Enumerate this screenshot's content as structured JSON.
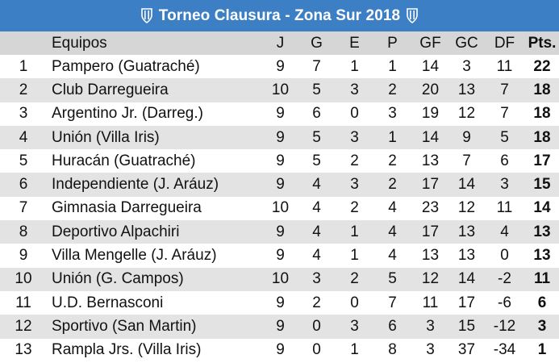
{
  "title": "Torneo Clausura - Zona Sur 2018",
  "colors": {
    "header_bar": "#3c7fc5",
    "column_header": "#d6d6d6",
    "row_alt": "#e3e3e3"
  },
  "icons": {
    "title_left": "team-crest-icon",
    "title_right": "team-crest-icon"
  },
  "columns": [
    "",
    "Equipos",
    "J",
    "G",
    "E",
    "P",
    "GF",
    "GC",
    "DF",
    "Pts."
  ],
  "rows": [
    {
      "pos": "1",
      "team": "Pampero (Guatraché)",
      "j": "9",
      "g": "7",
      "e": "1",
      "p": "1",
      "gf": "14",
      "gc": "3",
      "df": "11",
      "pts": "22"
    },
    {
      "pos": "2",
      "team": "Club Darregueira",
      "j": "10",
      "g": "5",
      "e": "3",
      "p": "2",
      "gf": "20",
      "gc": "13",
      "df": "7",
      "pts": "18"
    },
    {
      "pos": "3",
      "team": "Argentino Jr. (Darreg.)",
      "j": "9",
      "g": "6",
      "e": "0",
      "p": "3",
      "gf": "19",
      "gc": "12",
      "df": "7",
      "pts": "18"
    },
    {
      "pos": "4",
      "team": "Unión (Villa Iris)",
      "j": "9",
      "g": "5",
      "e": "3",
      "p": "1",
      "gf": "14",
      "gc": "9",
      "df": "5",
      "pts": "18"
    },
    {
      "pos": "5",
      "team": "Huracán (Guatraché)",
      "j": "9",
      "g": "5",
      "e": "2",
      "p": "2",
      "gf": "13",
      "gc": "7",
      "df": "6",
      "pts": "17"
    },
    {
      "pos": "6",
      "team": "Independiente (J. Aráuz)",
      "j": "9",
      "g": "4",
      "e": "3",
      "p": "2",
      "gf": "17",
      "gc": "14",
      "df": "3",
      "pts": "15"
    },
    {
      "pos": "7",
      "team": "Gimnasia Darregueira",
      "j": "10",
      "g": "4",
      "e": "2",
      "p": "4",
      "gf": "23",
      "gc": "12",
      "df": "11",
      "pts": "14"
    },
    {
      "pos": "8",
      "team": "Deportivo Alpachiri",
      "j": "9",
      "g": "4",
      "e": "1",
      "p": "4",
      "gf": "17",
      "gc": "13",
      "df": "4",
      "pts": "13"
    },
    {
      "pos": "9",
      "team": "Villa Mengelle (J. Aráuz)",
      "j": "9",
      "g": "4",
      "e": "1",
      "p": "4",
      "gf": "13",
      "gc": "13",
      "df": "0",
      "pts": "13"
    },
    {
      "pos": "10",
      "team": "Unión (G. Campos)",
      "j": "10",
      "g": "3",
      "e": "2",
      "p": "5",
      "gf": "12",
      "gc": "14",
      "df": "-2",
      "pts": "11"
    },
    {
      "pos": "11",
      "team": "U.D. Bernasconi",
      "j": "9",
      "g": "2",
      "e": "0",
      "p": "7",
      "gf": "11",
      "gc": "17",
      "df": "-6",
      "pts": "6"
    },
    {
      "pos": "12",
      "team": "Sportivo (San Martin)",
      "j": "9",
      "g": "0",
      "e": "3",
      "p": "6",
      "gf": "3",
      "gc": "15",
      "df": "-12",
      "pts": "3"
    },
    {
      "pos": "13",
      "team": "Rampla Jrs. (Villa Iris)",
      "j": "9",
      "g": "0",
      "e": "1",
      "p": "8",
      "gf": "3",
      "gc": "37",
      "df": "-34",
      "pts": "1"
    }
  ]
}
